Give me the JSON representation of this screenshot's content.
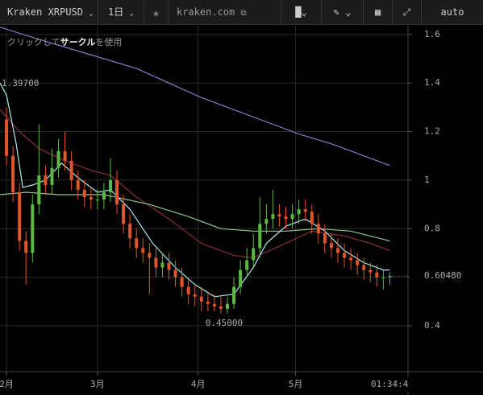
{
  "toolbar": {
    "symbol": "Kraken XRPUSD",
    "interval": "1日",
    "site": "kraken.com",
    "scale": "auto"
  },
  "hint": {
    "before": "クリックして",
    "bold": "サークル",
    "after": "を使用"
  },
  "chart_data": {
    "type": "candlestick",
    "x": [
      0,
      2,
      4,
      6,
      8,
      10,
      12,
      14,
      16,
      18,
      20,
      22,
      24,
      26,
      28,
      30,
      32,
      34,
      36,
      38,
      40,
      42,
      44,
      46,
      48,
      50,
      52,
      54,
      56,
      58,
      60,
      62,
      64,
      66,
      68,
      70,
      72,
      74,
      76,
      78,
      80,
      82,
      84,
      86,
      88,
      90,
      92,
      94,
      96,
      98,
      100,
      102,
      104,
      106,
      108,
      110,
      112,
      114,
      116,
      118
    ],
    "open": [
      1.25,
      1.1,
      0.95,
      0.75,
      0.7,
      0.9,
      1.02,
      0.98,
      1.05,
      1.12,
      1.08,
      1.0,
      0.96,
      0.93,
      0.92,
      0.92,
      0.95,
      1.0,
      0.9,
      0.82,
      0.76,
      0.72,
      0.7,
      0.68,
      0.64,
      0.66,
      0.63,
      0.6,
      0.56,
      0.53,
      0.52,
      0.5,
      0.49,
      0.48,
      0.47,
      0.49,
      0.56,
      0.63,
      0.67,
      0.72,
      0.82,
      0.84,
      0.86,
      0.85,
      0.84,
      0.86,
      0.88,
      0.87,
      0.82,
      0.78,
      0.74,
      0.72,
      0.7,
      0.68,
      0.67,
      0.65,
      0.63,
      0.62,
      0.6,
      0.6
    ],
    "high": [
      1.3,
      1.14,
      0.99,
      0.79,
      0.94,
      1.23,
      1.06,
      1.13,
      1.17,
      1.2,
      1.12,
      1.04,
      1.0,
      0.97,
      0.96,
      0.99,
      1.09,
      1.04,
      0.94,
      0.86,
      0.8,
      0.76,
      0.74,
      0.72,
      0.7,
      0.7,
      0.67,
      0.64,
      0.6,
      0.57,
      0.56,
      0.54,
      0.53,
      0.52,
      0.52,
      0.6,
      0.67,
      0.72,
      0.78,
      0.93,
      0.9,
      0.96,
      0.9,
      0.89,
      0.9,
      0.92,
      0.92,
      0.9,
      0.86,
      0.82,
      0.78,
      0.76,
      0.74,
      0.72,
      0.7,
      0.68,
      0.66,
      0.65,
      0.63,
      0.62
    ],
    "low": [
      1.06,
      0.91,
      0.71,
      0.57,
      0.66,
      0.86,
      0.94,
      0.94,
      1.01,
      1.04,
      0.96,
      0.92,
      0.89,
      0.88,
      0.88,
      0.88,
      0.91,
      0.86,
      0.78,
      0.72,
      0.68,
      0.66,
      0.53,
      0.6,
      0.6,
      0.59,
      0.56,
      0.52,
      0.49,
      0.48,
      0.46,
      0.46,
      0.46,
      0.45,
      0.45,
      0.47,
      0.53,
      0.6,
      0.64,
      0.68,
      0.78,
      0.8,
      0.81,
      0.8,
      0.8,
      0.82,
      0.83,
      0.78,
      0.74,
      0.7,
      0.68,
      0.66,
      0.64,
      0.63,
      0.61,
      0.59,
      0.58,
      0.56,
      0.55,
      0.57
    ],
    "close": [
      1.1,
      0.95,
      0.75,
      0.7,
      0.9,
      1.02,
      0.98,
      1.05,
      1.12,
      1.08,
      1.0,
      0.96,
      0.93,
      0.92,
      0.92,
      0.95,
      1.0,
      0.9,
      0.82,
      0.76,
      0.72,
      0.7,
      0.68,
      0.64,
      0.66,
      0.63,
      0.6,
      0.56,
      0.53,
      0.52,
      0.5,
      0.49,
      0.48,
      0.47,
      0.49,
      0.56,
      0.63,
      0.67,
      0.72,
      0.82,
      0.84,
      0.86,
      0.85,
      0.84,
      0.86,
      0.88,
      0.87,
      0.82,
      0.78,
      0.74,
      0.72,
      0.7,
      0.68,
      0.67,
      0.65,
      0.63,
      0.62,
      0.6,
      0.6,
      0.605
    ],
    "up_color": "#5db843",
    "down_color": "#e2552c",
    "xlim": [
      -2,
      123.6
    ],
    "xticks": [
      {
        "value": 0,
        "label": "2月"
      },
      {
        "value": 28,
        "label": "3月"
      },
      {
        "value": 59,
        "label": "4月"
      },
      {
        "value": 89,
        "label": "5月"
      }
    ],
    "ylim": [
      0.211,
      1.636
    ],
    "yticks": [
      0.4,
      0.6,
      0.8,
      1,
      1.2,
      1.4,
      1.6
    ],
    "grid": true,
    "lines": [
      {
        "color": "#7f7fc8",
        "x": [
          -2,
          10,
          20,
          30,
          40,
          50,
          60,
          70,
          80,
          90,
          100,
          110,
          118
        ],
        "values": [
          1.63,
          1.58,
          1.54,
          1.5,
          1.46,
          1.4,
          1.34,
          1.29,
          1.24,
          1.19,
          1.15,
          1.1,
          1.06
        ]
      },
      {
        "color": "#8a2e38",
        "x": [
          -2,
          4,
          10,
          18,
          26,
          32,
          40,
          50,
          60,
          70,
          76,
          86,
          94,
          104,
          112,
          118
        ],
        "values": [
          1.29,
          1.2,
          1.13,
          1.08,
          1.04,
          1.02,
          0.93,
          0.84,
          0.74,
          0.69,
          0.68,
          0.74,
          0.79,
          0.77,
          0.74,
          0.71
        ]
      },
      {
        "color": "#8fc88a",
        "x": [
          -2,
          6,
          16,
          30,
          44,
          56,
          66,
          76,
          86,
          96,
          106,
          118
        ],
        "values": [
          0.94,
          0.95,
          0.94,
          0.94,
          0.9,
          0.85,
          0.8,
          0.79,
          0.79,
          0.8,
          0.79,
          0.75
        ]
      },
      {
        "color": "#a8eef0",
        "x": [
          -2,
          0,
          3,
          5,
          8,
          12,
          17,
          22,
          28,
          32,
          38,
          45,
          52,
          58,
          64,
          70,
          76,
          80,
          86,
          92,
          98,
          104,
          110,
          116,
          118
        ],
        "values": [
          1.4,
          1.35,
          1.15,
          0.97,
          0.98,
          1.0,
          1.07,
          1.01,
          0.95,
          0.96,
          0.88,
          0.74,
          0.64,
          0.57,
          0.52,
          0.53,
          0.64,
          0.74,
          0.81,
          0.84,
          0.79,
          0.71,
          0.66,
          0.63,
          0.63
        ]
      }
    ],
    "annotations": [
      {
        "x": -2,
        "y": 1.397,
        "label": "1.39700"
      },
      {
        "x": 67,
        "y": 0.45,
        "label": "0.45000"
      }
    ],
    "last_price": {
      "value": 0.6048,
      "label": "0.60480"
    },
    "countdown": "01:34:4"
  }
}
